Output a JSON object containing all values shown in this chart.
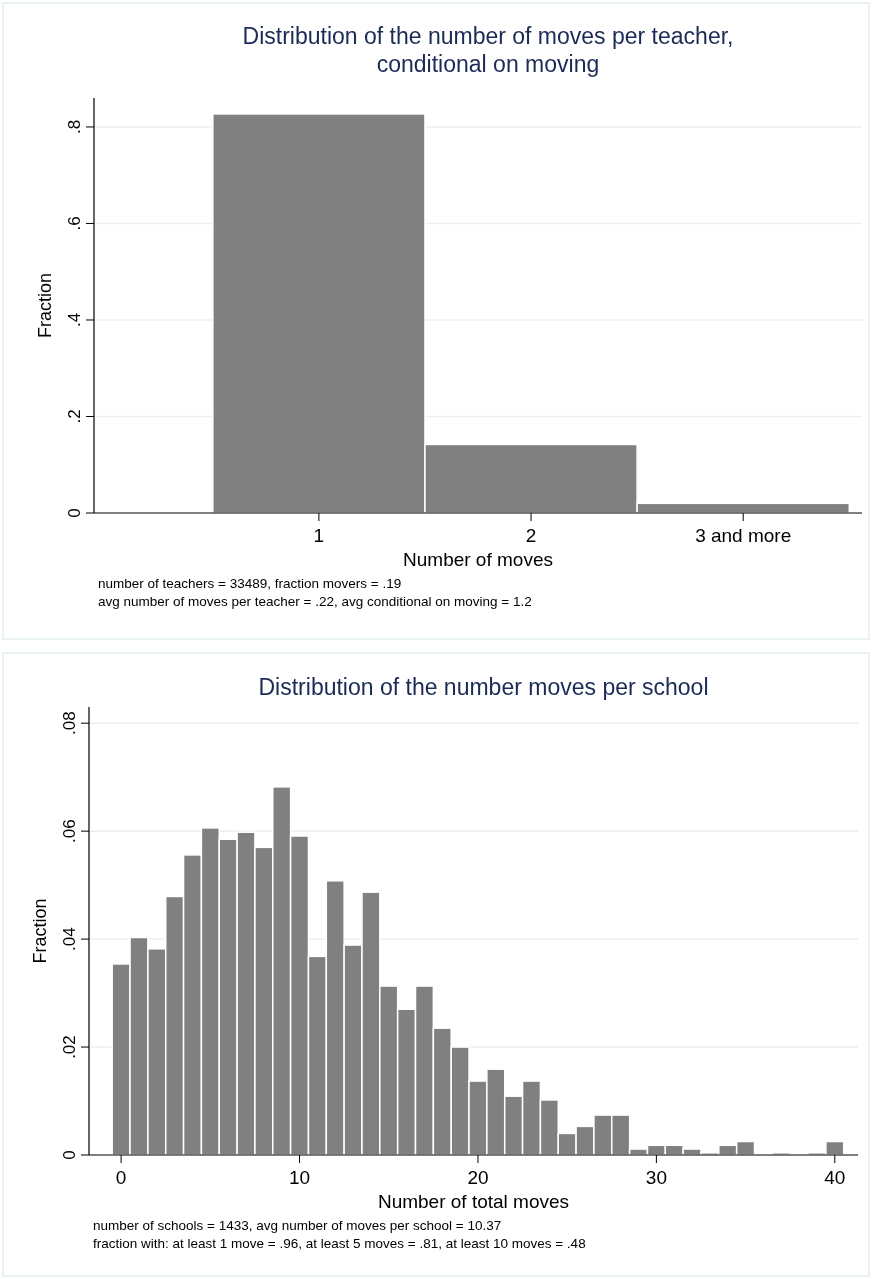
{
  "chart_data": [
    {
      "type": "histogram",
      "title": "Distribution of the number of moves per teacher, conditional on moving",
      "xlabel": "Number of moves",
      "ylabel": "Fraction",
      "bins": [
        0.5,
        1.5,
        2.5,
        3.5
      ],
      "values": [
        0.827,
        0.142,
        0.02
      ],
      "color": "#808080",
      "xlim": [
        -0.06,
        3.56
      ],
      "xticks": [
        1,
        2,
        {
          "value": 3,
          "label": "3 and more"
        }
      ],
      "ylim": [
        0,
        0.86
      ],
      "yticks": [
        0,
        {
          "value": 0.2,
          "label": ".2"
        },
        {
          "value": 0.4,
          "label": ".4"
        },
        {
          "value": 0.6,
          "label": ".6"
        },
        {
          "value": 0.8,
          "label": ".8"
        }
      ],
      "grid": "y",
      "annotations": [
        "number of teachers = 33489, fraction movers = .19",
        "avg number of moves per teacher = .22, avg conditional on moving = 1.2"
      ]
    },
    {
      "type": "histogram",
      "title": "Distribution of the number moves per school",
      "xlabel": "Number of total moves",
      "ylabel": "Fraction",
      "bins": [
        -0.5,
        0.5,
        1.5,
        2.5,
        3.5,
        4.5,
        5.5,
        6.5,
        7.5,
        8.5,
        9.5,
        10.5,
        11.5,
        12.5,
        13.5,
        14.5,
        15.5,
        16.5,
        17.5,
        18.5,
        19.5,
        20.5,
        21.5,
        22.5,
        23.5,
        24.5,
        25.5,
        26.5,
        27.5,
        28.5,
        29.5,
        30.5,
        31.5,
        32.5,
        33.5,
        34.5,
        35.5,
        36.5,
        37.5,
        38.5,
        39.5,
        40.5
      ],
      "values": [
        0.0354,
        0.0403,
        0.0382,
        0.0479,
        0.0556,
        0.0606,
        0.0585,
        0.0598,
        0.057,
        0.0682,
        0.0591,
        0.0368,
        0.0508,
        0.0389,
        0.0487,
        0.0313,
        0.027,
        0.0313,
        0.0235,
        0.02,
        0.0137,
        0.0159,
        0.0109,
        0.0137,
        0.0102,
        0.004,
        0.0053,
        0.0074,
        0.0074,
        0.0011,
        0.0018,
        0.0018,
        0.0011,
        0.0004,
        0.0018,
        0.0025,
        0,
        0.0004,
        0,
        0.0004,
        0.0025
      ],
      "color": "#808080",
      "xlim": [
        -1.8,
        41.3
      ],
      "xticks": [
        0,
        10,
        20,
        30,
        40
      ],
      "ylim": [
        0,
        0.083
      ],
      "yticks": [
        0,
        {
          "value": 0.02,
          "label": ".02"
        },
        {
          "value": 0.04,
          "label": ".04"
        },
        {
          "value": 0.06,
          "label": ".06"
        },
        {
          "value": 0.08,
          "label": ".08"
        }
      ],
      "grid": "y",
      "annotations": [
        "number of schools = 1433, avg number of moves per school = 10.37",
        "fraction with: at least 1 move = .96, at least 5 moves = .81, at least 10 moves = .48"
      ]
    }
  ]
}
